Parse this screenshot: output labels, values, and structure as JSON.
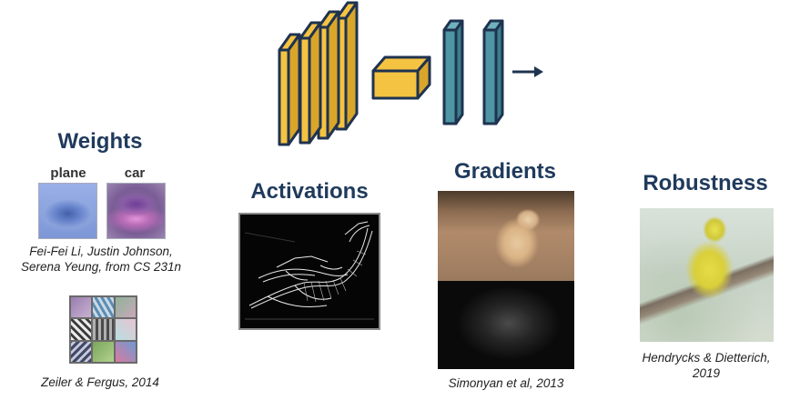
{
  "sections": {
    "weights": {
      "title": "Weights",
      "labels": [
        "plane",
        "car"
      ],
      "caption_line1": "Fei-Fei Li, Justin Johnson,",
      "caption_line2": "Serena Yeung, from CS 231n",
      "caption2": "Zeiler & Fergus, 2014"
    },
    "activations": {
      "title": "Activations"
    },
    "gradients": {
      "title": "Gradients",
      "caption": "Simonyan et al, 2013"
    },
    "robustness": {
      "title": "Robustness",
      "caption_line1": "Hendrycks & Dietterich,",
      "caption_line2": "2019"
    }
  },
  "colors": {
    "heading": "#1f3a5c",
    "conv_fill": "#f5c342",
    "conv_stroke": "#1f3350",
    "fc_fill": "#4e96a3",
    "arrow": "#1f3350"
  }
}
